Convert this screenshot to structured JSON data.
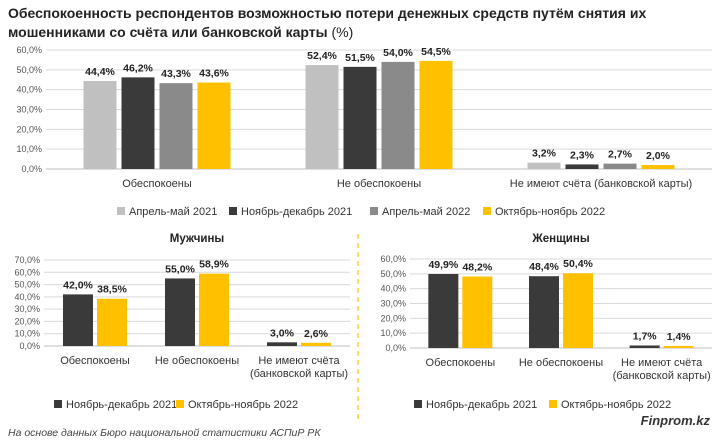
{
  "title_bold": "Обеспокоенность респондентов возможностью потери денежных средств путём снятия их мошенниками со счёта или банковской карты",
  "title_unit": " (%)",
  "footer": "На основе данных Бюро национальной статистики АСПиР РК",
  "brand": "Finprom.kz",
  "colors": {
    "apr2021": "#c0c0c0",
    "nov2021": "#3a3a3a",
    "apr2022": "#8a8a8a",
    "oct2022": "#ffc000",
    "grid": "#d9d9d9",
    "divider": "#ffc000"
  },
  "chart_data": [
    {
      "type": "bar",
      "categories": [
        "Обеспокоены",
        "Не обеспокоены",
        "Не имеют счёта (банковской карты)"
      ],
      "ylim": [
        0,
        60
      ],
      "yticks": [
        "0,0%",
        "10,0%",
        "20,0%",
        "30,0%",
        "40,0%",
        "50,0%",
        "60,0%"
      ],
      "series": [
        {
          "name": "Апрель-май 2021",
          "values": [
            44.4,
            52.4,
            3.2
          ],
          "labels": [
            "44,4%",
            "52,4%",
            "3,2%"
          ]
        },
        {
          "name": "Ноябрь-декабрь 2021",
          "values": [
            46.2,
            51.5,
            2.3
          ],
          "labels": [
            "46,2%",
            "51,5%",
            "2,3%"
          ]
        },
        {
          "name": "Апрель-май 2022",
          "values": [
            43.3,
            54.0,
            2.7
          ],
          "labels": [
            "43,3%",
            "54,0%",
            "2,7%"
          ]
        },
        {
          "name": "Октябрь-ноябрь 2022",
          "values": [
            43.6,
            54.5,
            2.0
          ],
          "labels": [
            "43,6%",
            "54,5%",
            "2,0%"
          ]
        }
      ],
      "legend": "bottom"
    },
    {
      "type": "bar",
      "title": "Мужчины",
      "categories": [
        "Обеспокоены",
        "Не обеспокоены",
        "Не имеют счёта (банковской карты)"
      ],
      "ylim": [
        0,
        70
      ],
      "yticks": [
        "0,0%",
        "10,0%",
        "20,0%",
        "30,0%",
        "40,0%",
        "50,0%",
        "60,0%",
        "70,0%"
      ],
      "series": [
        {
          "name": "Ноябрь-декабрь 2021",
          "values": [
            42.0,
            55.0,
            3.0
          ],
          "labels": [
            "42,0%",
            "55,0%",
            "3,0%"
          ]
        },
        {
          "name": "Октябрь-ноябрь 2022",
          "values": [
            38.5,
            58.9,
            2.6
          ],
          "labels": [
            "38,5%",
            "58,9%",
            "2,6%"
          ]
        }
      ],
      "legend": "bottom"
    },
    {
      "type": "bar",
      "title": "Женщины",
      "categories": [
        "Обеспокоены",
        "Не обеспокоены",
        "Не имеют счёта (банковской карты)"
      ],
      "ylim": [
        0,
        60
      ],
      "yticks": [
        "0,0%",
        "10,0%",
        "20,0%",
        "30,0%",
        "40,0%",
        "50,0%",
        "60,0%"
      ],
      "series": [
        {
          "name": "Ноябрь-декабрь 2021",
          "values": [
            49.9,
            48.4,
            1.7
          ],
          "labels": [
            "49,9%",
            "48,4%",
            "1,7%"
          ]
        },
        {
          "name": "Октябрь-ноябрь 2022",
          "values": [
            48.2,
            50.4,
            1.4
          ],
          "labels": [
            "48,2%",
            "50,4%",
            "1,4%"
          ]
        }
      ],
      "legend": "bottom"
    }
  ]
}
